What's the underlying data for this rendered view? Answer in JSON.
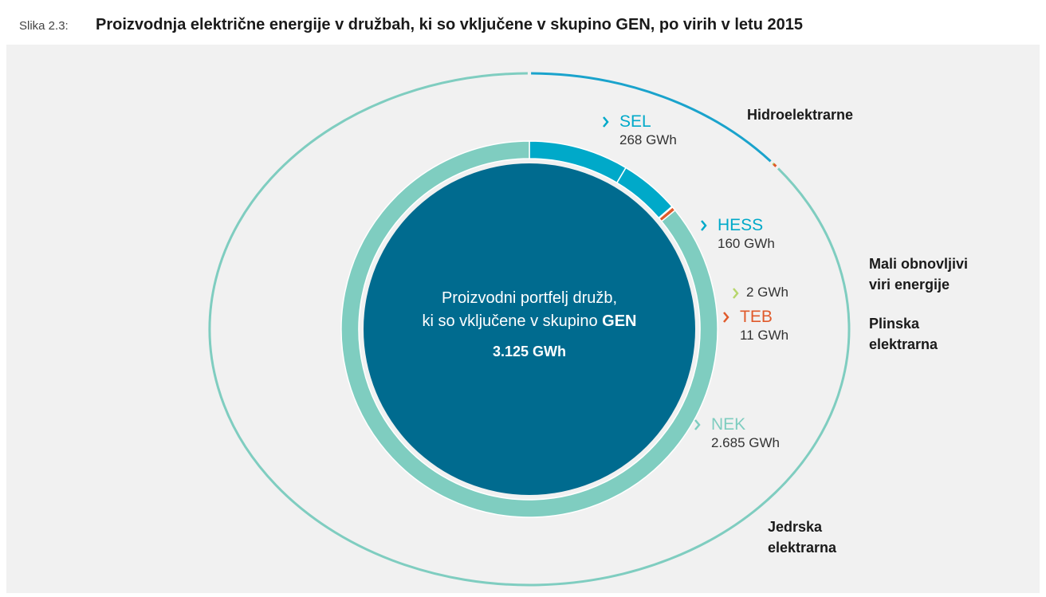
{
  "chart_data": [
    {
      "type": "pie",
      "figure_label": "Slika 2.3:",
      "title": "Proizvodnja električne energije v družbah, ki so vključene v skupino GEN, po virih v letu 2015",
      "center_lines": [
        "Proizvodni portfelj družb,",
        "ki so vključene v skupino"
      ],
      "center_bold": "GEN",
      "total_label": "3.125 GWh",
      "categories": [
        "SEL",
        "HESS",
        null,
        "TEB",
        "NEK"
      ],
      "values": [
        268,
        160,
        2,
        11,
        2685
      ],
      "value_labels": [
        "268 GWh",
        "160 GWh",
        "2 GWh",
        "11 GWh",
        "2.685 GWh"
      ],
      "colors": [
        "#00a9c9",
        "#00a9c9",
        "#b7d66c",
        "#e05a2b",
        "#7fcdc0"
      ],
      "center_color": "#006b8f"
    },
    {
      "type": "ring",
      "categories": [
        "Hidroelektrarne",
        "Mali obnovljivi viri energije",
        "Plinska elektrarna",
        "Jedrska elektrarna"
      ],
      "values": [
        428,
        2,
        11,
        2685
      ],
      "colors": [
        "#1aa3cc",
        "#b7d66c",
        "#e05a2b",
        "#7fcdc0"
      ]
    }
  ]
}
